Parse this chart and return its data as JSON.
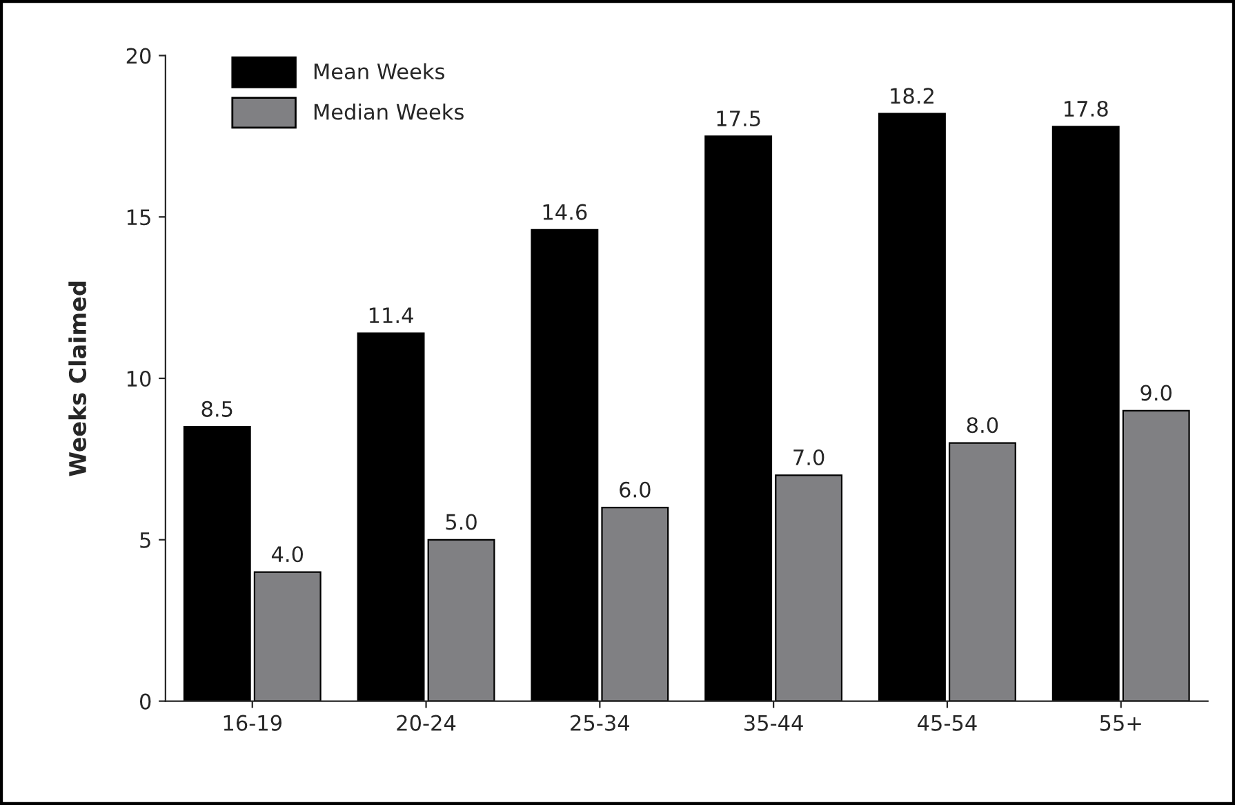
{
  "chart_data": {
    "type": "bar",
    "ylabel": "Weeks Claimed",
    "categories": [
      "16-19",
      "20-24",
      "25-34",
      "35-44",
      "45-54",
      "55+"
    ],
    "series": [
      {
        "name": "Mean Weeks",
        "color": "#000000",
        "values": [
          8.5,
          11.4,
          14.6,
          17.5,
          18.2,
          17.8
        ],
        "value_labels": [
          "8.5",
          "11.4",
          "14.6",
          "17.5",
          "18.2",
          "17.8"
        ]
      },
      {
        "name": "Median Weeks",
        "color": "#808083",
        "values": [
          4.0,
          5.0,
          6.0,
          7.0,
          8.0,
          9.0
        ],
        "value_labels": [
          "4.0",
          "5.0",
          "6.0",
          "7.0",
          "8.0",
          "9.0"
        ]
      }
    ],
    "ylim": [
      0,
      20
    ],
    "yticks": [
      0,
      5,
      10,
      15,
      20
    ],
    "grid": false,
    "legend": "top left"
  }
}
